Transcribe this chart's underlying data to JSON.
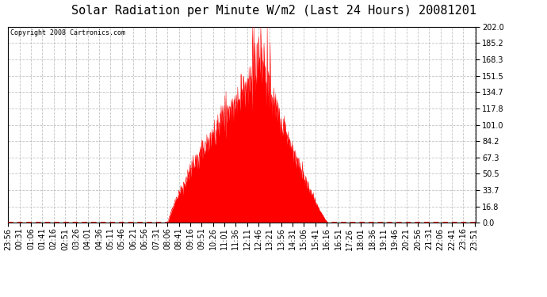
{
  "title": "Solar Radiation per Minute W/m2 (Last 24 Hours) 20081201",
  "copyright": "Copyright 2008 Cartronics.com",
  "yticks": [
    0.0,
    16.8,
    33.7,
    50.5,
    67.3,
    84.2,
    101.0,
    117.8,
    134.7,
    151.5,
    168.3,
    185.2,
    202.0
  ],
  "ymax": 202.0,
  "ymin": 0.0,
  "fill_color": "#FF0000",
  "line_color": "#FF0000",
  "bg_color": "#FFFFFF",
  "grid_color": "#AAAAAA",
  "dashed_line_color": "#FF0000",
  "title_fontsize": 11,
  "tick_fontsize": 7,
  "copyright_fontsize": 6
}
